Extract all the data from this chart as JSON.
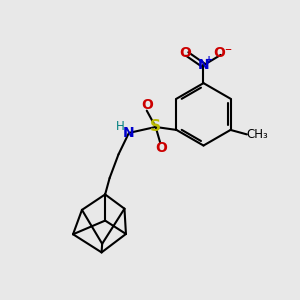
{
  "background_color": "#e8e8e8",
  "atom_colors": {
    "C": "#000000",
    "N": "#0000cc",
    "O": "#cc0000",
    "S": "#b8b800",
    "H": "#008080"
  },
  "bond_color": "#000000",
  "bond_width": 1.5,
  "figsize": [
    3.0,
    3.0
  ],
  "dpi": 100
}
